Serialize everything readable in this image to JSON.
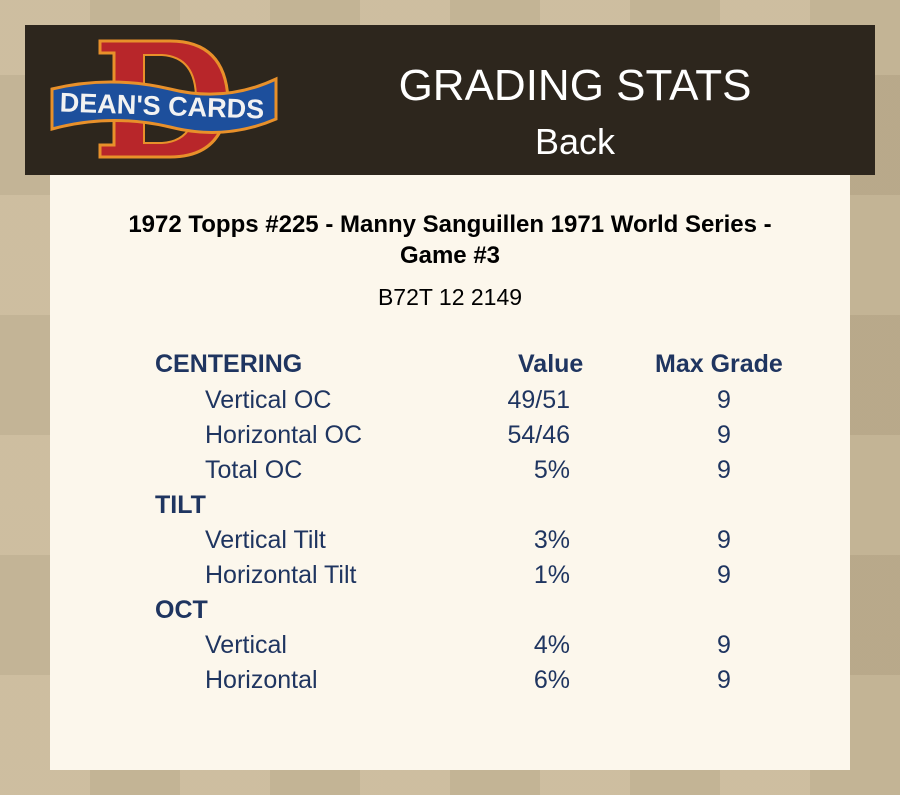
{
  "header": {
    "logo_text": "DEAN'S CARDS",
    "title": "GRADING STATS",
    "subtitle": "Back"
  },
  "card": {
    "title": "1972 Topps #225  -  Manny Sanguillen 1971 World Series - Game #3",
    "id": "B72T 12 2149"
  },
  "table": {
    "value_header": "Value",
    "max_header": "Max Grade",
    "sections": [
      {
        "label": "CENTERING",
        "rows": [
          {
            "label": "Vertical OC",
            "value": "49/51",
            "max": "9"
          },
          {
            "label": "Horizontal OC",
            "value": "54/46",
            "max": "9"
          },
          {
            "label": "Total OC",
            "value": "5%",
            "max": "9"
          }
        ]
      },
      {
        "label": "TILT",
        "rows": [
          {
            "label": "Vertical Tilt",
            "value": "3%",
            "max": "9"
          },
          {
            "label": "Horizontal Tilt",
            "value": "1%",
            "max": "9"
          }
        ]
      },
      {
        "label": "OCT",
        "rows": [
          {
            "label": "Vertical",
            "value": "4%",
            "max": "9"
          },
          {
            "label": "Horizontal",
            "value": "6%",
            "max": "9"
          }
        ]
      }
    ]
  },
  "colors": {
    "header_bg": "#2d261d",
    "panel_bg": "#fcf7ec",
    "text_navy": "#1f3560",
    "logo_red": "#b8262a",
    "logo_blue": "#1d4f9c"
  }
}
